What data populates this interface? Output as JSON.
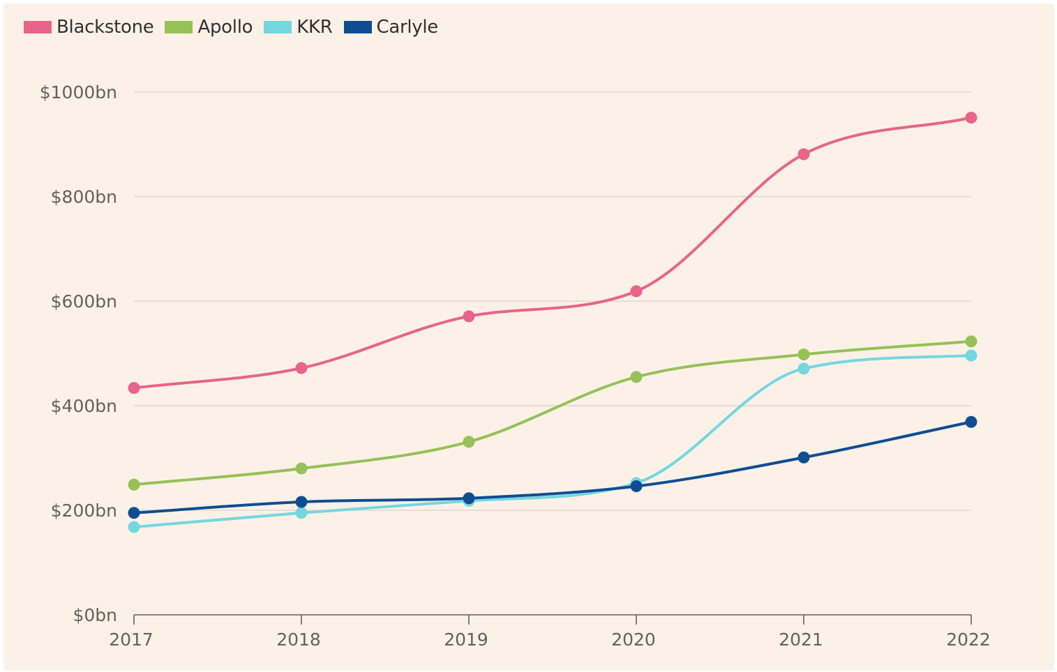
{
  "chart_data": {
    "type": "line",
    "categories": [
      "2017",
      "2018",
      "2019",
      "2020",
      "2021",
      "2022"
    ],
    "series": [
      {
        "name": "Blackstone",
        "color": "#e8648a",
        "values": [
          434,
          472,
          571,
          619,
          881,
          951
        ]
      },
      {
        "name": "Apollo",
        "color": "#96c157",
        "values": [
          249,
          280,
          331,
          455,
          498,
          523
        ]
      },
      {
        "name": "KKR",
        "color": "#74d7e0",
        "values": [
          168,
          195,
          218,
          252,
          471,
          496
        ]
      },
      {
        "name": "Carlyle",
        "color": "#0f4d92",
        "values": [
          195,
          216,
          223,
          246,
          301,
          369
        ]
      }
    ],
    "y_ticks": [
      {
        "value": 0,
        "label": "$0bn"
      },
      {
        "value": 200,
        "label": "$200bn"
      },
      {
        "value": 400,
        "label": "$400bn"
      },
      {
        "value": 600,
        "label": "$600bn"
      },
      {
        "value": 800,
        "label": "$800bn"
      },
      {
        "value": 1000,
        "label": "$1000bn"
      }
    ],
    "ylim": [
      0,
      1000
    ],
    "grid": true,
    "legend_position": "top-left",
    "title": "",
    "xlabel": "",
    "ylabel": ""
  }
}
